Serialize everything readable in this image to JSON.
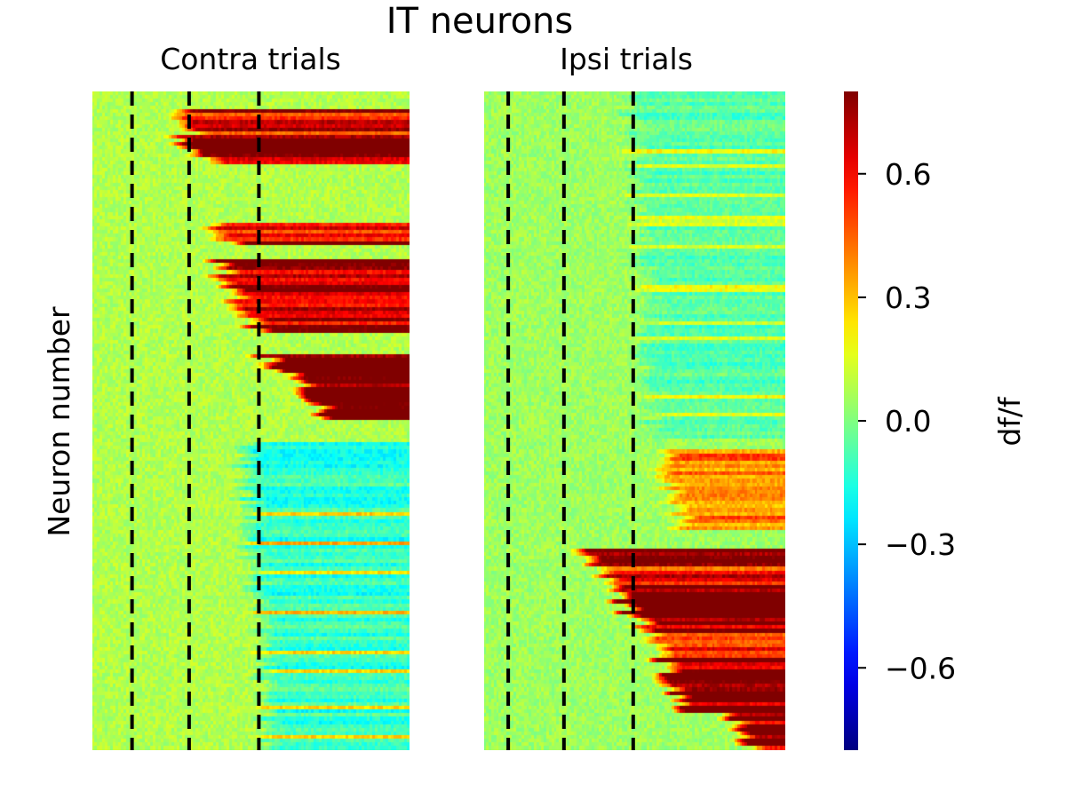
{
  "chart_data": {
    "type": "heatmap",
    "title": "IT neurons",
    "ylabel": "Neuron number",
    "colorbar": {
      "label": "df/f",
      "colormap": "jet",
      "range": [
        -0.8,
        0.8
      ],
      "ticks": [
        0.6,
        0.3,
        0.0,
        -0.3,
        -0.6
      ],
      "tick_labels": [
        "0.6",
        "0.3",
        "0.0",
        "−0.3",
        "−0.6"
      ]
    },
    "group_bar": {
      "groups": [
        {
          "color": "#0a0aff",
          "fraction": 0.52
        },
        {
          "color": "#ff0a0a",
          "fraction": 0.48
        }
      ]
    },
    "panels": [
      {
        "title": "Contra trials",
        "n_neurons": 180,
        "n_timepoints": 120,
        "event_lines_fraction": [
          0.125,
          0.305,
          0.525
        ],
        "baseline": 0.08,
        "bands": [
          {
            "start": 5,
            "end": 12,
            "onset": 0.22,
            "amp": 0.55
          },
          {
            "start": 12,
            "end": 20,
            "onset": 0.25,
            "amp": 0.75
          },
          {
            "start": 36,
            "end": 42,
            "onset": 0.33,
            "amp": 0.6
          },
          {
            "start": 46,
            "end": 56,
            "onset": 0.35,
            "amp": 0.7
          },
          {
            "start": 56,
            "end": 66,
            "onset": 0.42,
            "amp": 0.55
          },
          {
            "start": 72,
            "end": 78,
            "onset": 0.5,
            "amp": 0.55
          },
          {
            "start": 73,
            "end": 81,
            "onset": 0.55,
            "amp": 0.85
          },
          {
            "start": 81,
            "end": 90,
            "onset": 0.65,
            "amp": 0.95
          },
          {
            "start": 96,
            "end": 180,
            "onset": 0.45,
            "amp": -0.2
          }
        ]
      },
      {
        "title": "Ipsi trials",
        "n_neurons": 180,
        "n_timepoints": 120,
        "event_lines_fraction": [
          0.08,
          0.265,
          0.495
        ],
        "baseline": 0.05,
        "bands": [
          {
            "start": 0,
            "end": 95,
            "onset": 0.45,
            "amp": -0.12
          },
          {
            "start": 98,
            "end": 120,
            "onset": 0.55,
            "amp": 0.35
          },
          {
            "start": 125,
            "end": 135,
            "onset": 0.3,
            "amp": 0.6
          },
          {
            "start": 135,
            "end": 145,
            "onset": 0.4,
            "amp": 0.9
          },
          {
            "start": 145,
            "end": 155,
            "onset": 0.5,
            "amp": 0.6
          },
          {
            "start": 155,
            "end": 170,
            "onset": 0.55,
            "amp": 0.9
          },
          {
            "start": 170,
            "end": 180,
            "onset": 0.8,
            "amp": 0.85
          }
        ]
      }
    ]
  }
}
